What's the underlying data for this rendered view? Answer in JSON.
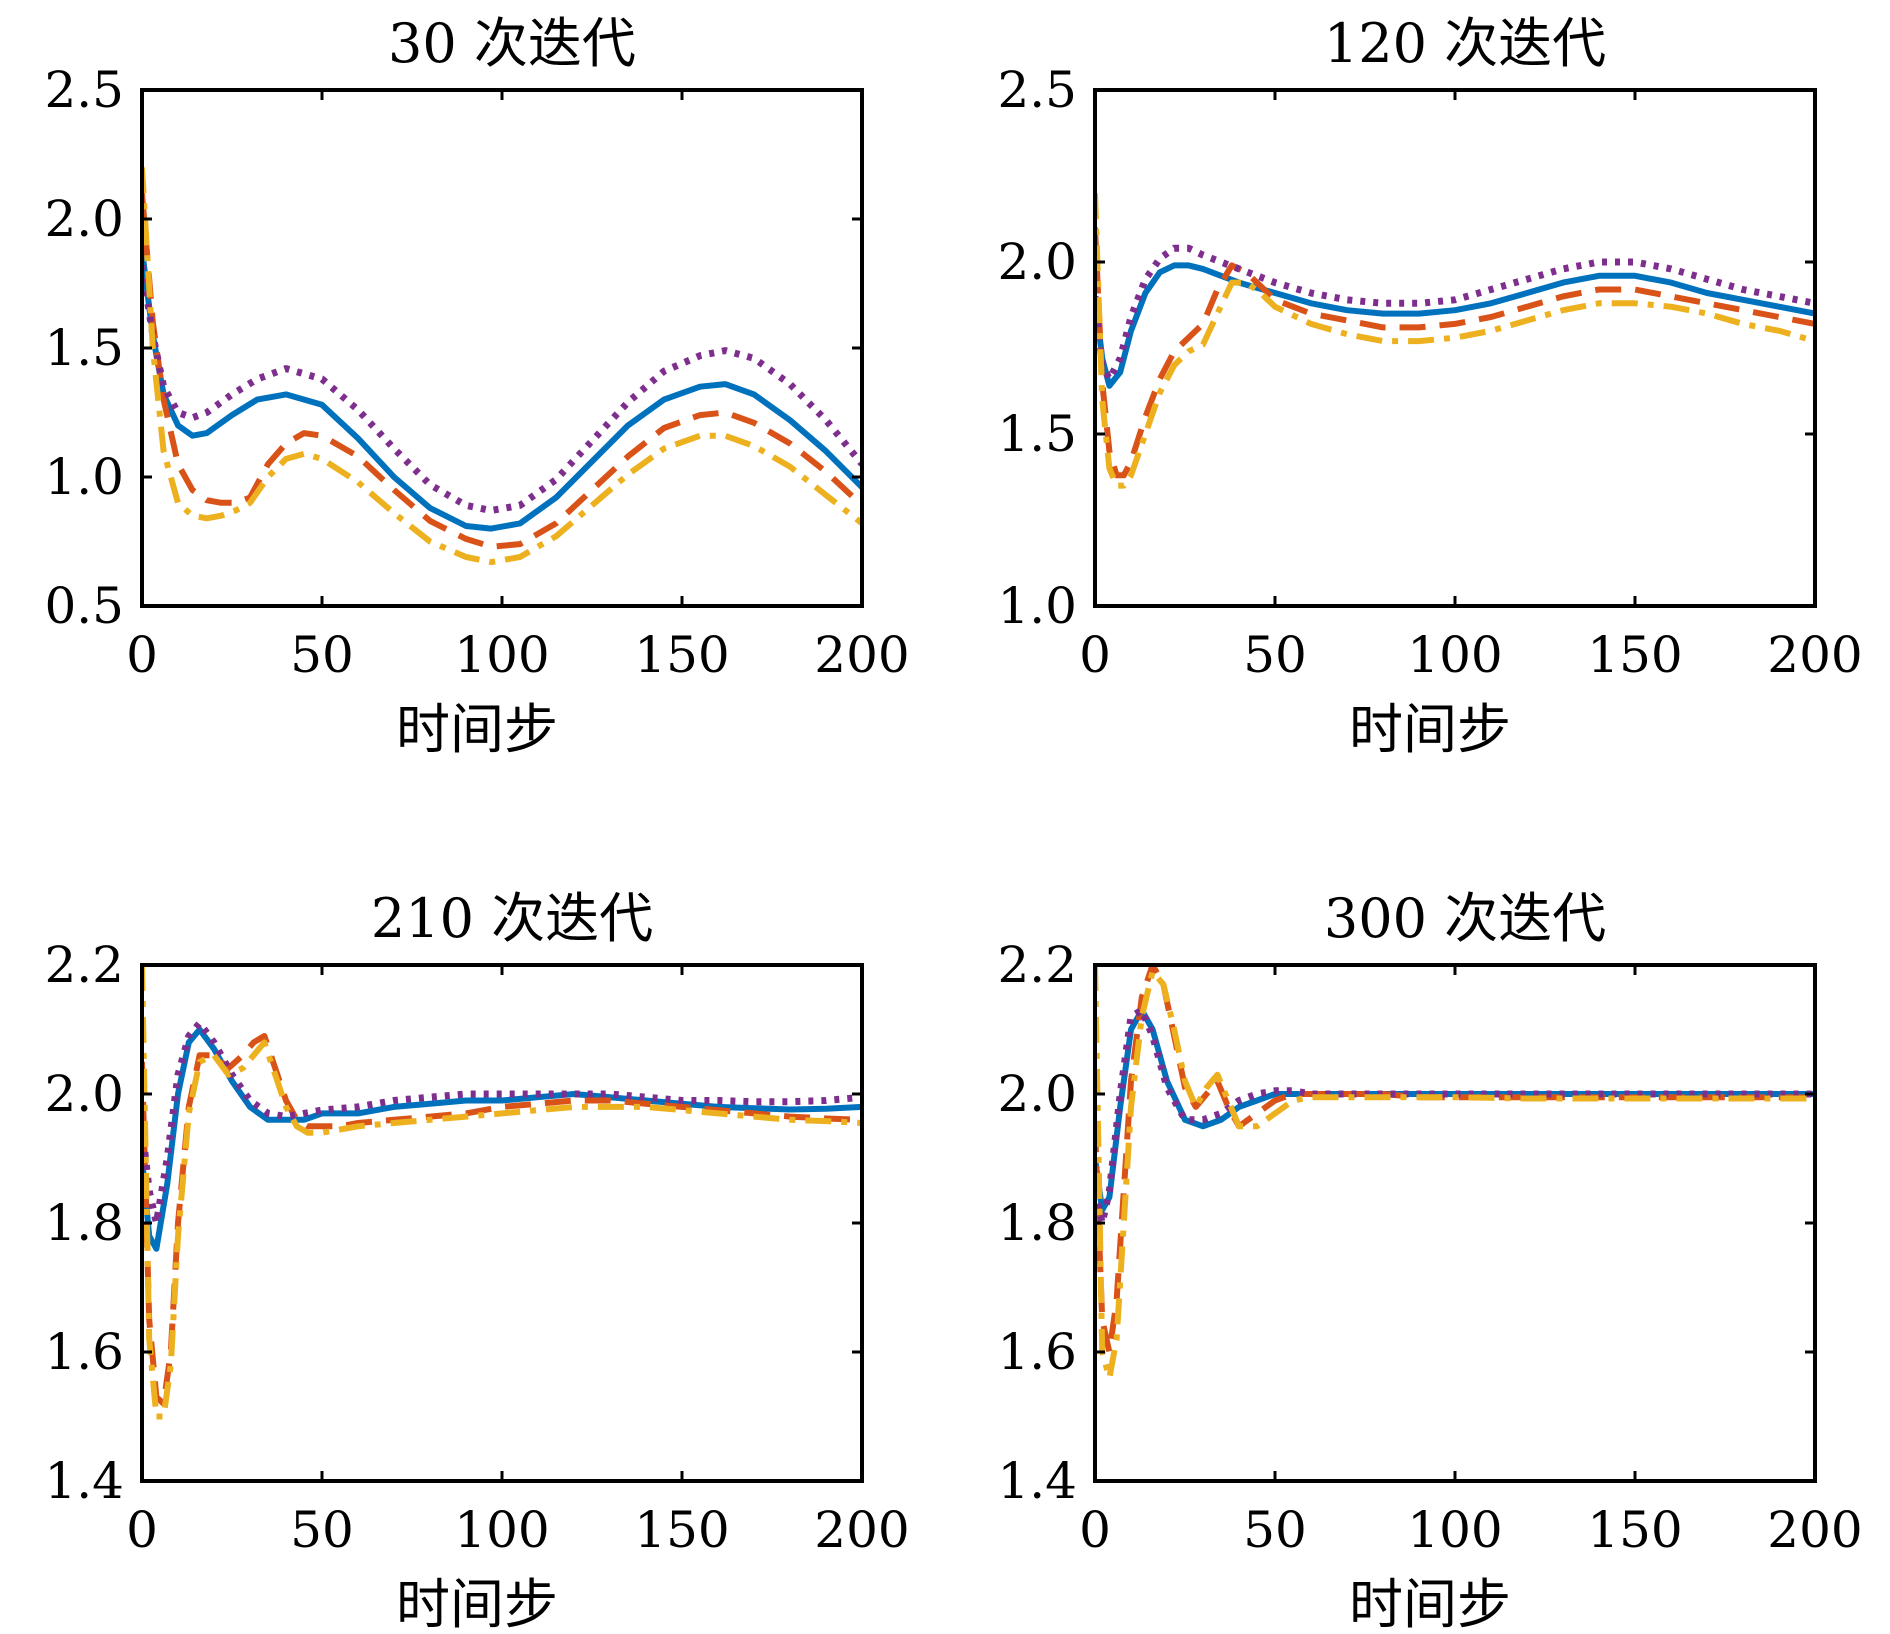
{
  "chart_data": [
    {
      "type": "line",
      "title": "30 次迭代",
      "xlabel": "时间步",
      "ylabel": "",
      "xlim": [
        0,
        200
      ],
      "ylim": [
        0.5,
        2.5
      ],
      "xticks": [
        "0",
        "50",
        "100",
        "150",
        "200"
      ],
      "yticks": [
        "0.5",
        "1.0",
        "1.5",
        "2.0",
        "2.5"
      ],
      "grid": false,
      "series": [
        {
          "color": "#0072BD",
          "style": "solid",
          "x": [
            0,
            3,
            6,
            10,
            14,
            18,
            25,
            32,
            40,
            50,
            60,
            70,
            80,
            90,
            97,
            105,
            115,
            125,
            135,
            145,
            155,
            162,
            170,
            180,
            190,
            200
          ],
          "y": [
            1.88,
            1.55,
            1.32,
            1.2,
            1.16,
            1.17,
            1.24,
            1.3,
            1.32,
            1.28,
            1.15,
            1.0,
            0.88,
            0.81,
            0.8,
            0.82,
            0.92,
            1.06,
            1.2,
            1.3,
            1.35,
            1.36,
            1.32,
            1.22,
            1.1,
            0.96
          ]
        },
        {
          "color": "#D95319",
          "style": "dashed",
          "x": [
            0,
            3,
            6,
            10,
            14,
            18,
            22,
            26,
            30,
            35,
            40,
            45,
            50,
            60,
            70,
            80,
            90,
            97,
            105,
            115,
            125,
            135,
            145,
            155,
            162,
            170,
            180,
            190,
            200
          ],
          "y": [
            2.1,
            1.6,
            1.3,
            1.05,
            0.95,
            0.91,
            0.9,
            0.9,
            0.92,
            1.05,
            1.13,
            1.17,
            1.16,
            1.08,
            0.95,
            0.83,
            0.76,
            0.73,
            0.74,
            0.82,
            0.95,
            1.08,
            1.19,
            1.24,
            1.25,
            1.21,
            1.13,
            1.02,
            0.89
          ]
        },
        {
          "color": "#7E2F8E",
          "style": "dotted",
          "x": [
            0,
            3,
            6,
            10,
            14,
            18,
            25,
            32,
            40,
            50,
            60,
            70,
            80,
            90,
            97,
            105,
            115,
            125,
            135,
            145,
            155,
            162,
            170,
            180,
            190,
            200
          ],
          "y": [
            1.82,
            1.55,
            1.35,
            1.25,
            1.23,
            1.25,
            1.32,
            1.38,
            1.42,
            1.38,
            1.26,
            1.11,
            0.97,
            0.89,
            0.87,
            0.89,
            0.99,
            1.14,
            1.29,
            1.41,
            1.47,
            1.49,
            1.46,
            1.36,
            1.22,
            1.05
          ]
        },
        {
          "color": "#EDB120",
          "style": "dashdot",
          "x": [
            0,
            3,
            6,
            10,
            14,
            18,
            22,
            26,
            30,
            35,
            40,
            45,
            50,
            60,
            70,
            80,
            90,
            97,
            105,
            115,
            125,
            135,
            145,
            155,
            162,
            170,
            180,
            190,
            200
          ],
          "y": [
            2.2,
            1.5,
            1.1,
            0.9,
            0.85,
            0.84,
            0.85,
            0.87,
            0.9,
            1.0,
            1.07,
            1.09,
            1.07,
            0.98,
            0.86,
            0.75,
            0.69,
            0.67,
            0.69,
            0.77,
            0.89,
            1.01,
            1.11,
            1.16,
            1.16,
            1.12,
            1.04,
            0.93,
            0.82
          ]
        }
      ]
    },
    {
      "type": "line",
      "title": "120 次迭代",
      "xlabel": "时间步",
      "ylabel": "",
      "xlim": [
        0,
        200
      ],
      "ylim": [
        1.0,
        2.5
      ],
      "xticks": [
        "0",
        "50",
        "100",
        "150",
        "200"
      ],
      "yticks": [
        "1.0",
        "1.5",
        "2.0",
        "2.5"
      ],
      "grid": false,
      "series": [
        {
          "color": "#0072BD",
          "style": "solid",
          "x": [
            0,
            2,
            4,
            7,
            10,
            14,
            18,
            22,
            26,
            30,
            35,
            40,
            50,
            60,
            70,
            80,
            90,
            100,
            110,
            120,
            130,
            140,
            150,
            160,
            170,
            180,
            190,
            200
          ],
          "y": [
            1.9,
            1.72,
            1.64,
            1.68,
            1.8,
            1.91,
            1.97,
            1.99,
            1.99,
            1.98,
            1.96,
            1.94,
            1.91,
            1.88,
            1.86,
            1.85,
            1.85,
            1.86,
            1.88,
            1.91,
            1.94,
            1.96,
            1.96,
            1.94,
            1.91,
            1.89,
            1.87,
            1.85
          ]
        },
        {
          "color": "#D95319",
          "style": "dashed",
          "x": [
            0,
            2,
            4,
            6,
            8,
            10,
            14,
            18,
            22,
            26,
            30,
            34,
            38,
            42,
            46,
            50,
            60,
            70,
            80,
            90,
            100,
            110,
            120,
            130,
            140,
            150,
            160,
            170,
            180,
            190,
            200
          ],
          "y": [
            2.1,
            1.65,
            1.45,
            1.38,
            1.38,
            1.42,
            1.55,
            1.66,
            1.74,
            1.78,
            1.82,
            1.92,
            1.99,
            1.97,
            1.93,
            1.89,
            1.85,
            1.83,
            1.81,
            1.81,
            1.82,
            1.84,
            1.87,
            1.9,
            1.92,
            1.92,
            1.9,
            1.88,
            1.86,
            1.84,
            1.82
          ]
        },
        {
          "color": "#7E2F8E",
          "style": "dotted",
          "x": [
            0,
            2,
            4,
            7,
            10,
            14,
            18,
            22,
            26,
            30,
            35,
            40,
            50,
            60,
            70,
            80,
            90,
            100,
            110,
            120,
            130,
            140,
            150,
            160,
            170,
            180,
            190,
            200
          ],
          "y": [
            1.9,
            1.7,
            1.66,
            1.72,
            1.84,
            1.95,
            2.01,
            2.04,
            2.04,
            2.02,
            2.0,
            1.98,
            1.94,
            1.91,
            1.89,
            1.88,
            1.88,
            1.89,
            1.92,
            1.95,
            1.98,
            2.0,
            2.0,
            1.98,
            1.95,
            1.92,
            1.9,
            1.88
          ]
        },
        {
          "color": "#EDB120",
          "style": "dashdot",
          "x": [
            0,
            2,
            4,
            6,
            8,
            10,
            14,
            18,
            22,
            26,
            30,
            34,
            38,
            42,
            46,
            50,
            60,
            70,
            80,
            90,
            100,
            110,
            120,
            130,
            140,
            150,
            160,
            170,
            180,
            190,
            200
          ],
          "y": [
            2.2,
            1.6,
            1.4,
            1.35,
            1.35,
            1.38,
            1.5,
            1.62,
            1.7,
            1.74,
            1.76,
            1.85,
            1.94,
            1.94,
            1.91,
            1.87,
            1.82,
            1.79,
            1.77,
            1.77,
            1.78,
            1.8,
            1.83,
            1.86,
            1.88,
            1.88,
            1.87,
            1.85,
            1.82,
            1.8,
            1.77
          ]
        }
      ]
    },
    {
      "type": "line",
      "title": "210 次迭代",
      "xlabel": "时间步",
      "ylabel": "",
      "xlim": [
        0,
        200
      ],
      "ylim": [
        1.4,
        2.2
      ],
      "xticks": [
        "0",
        "50",
        "100",
        "150",
        "200"
      ],
      "yticks": [
        "1.4",
        "1.6",
        "1.8",
        "2.0",
        "2.2"
      ],
      "grid": false,
      "series": [
        {
          "color": "#0072BD",
          "style": "solid",
          "x": [
            0,
            2,
            4,
            7,
            10,
            13,
            16,
            20,
            25,
            30,
            35,
            40,
            45,
            50,
            60,
            70,
            80,
            90,
            100,
            110,
            120,
            130,
            140,
            150,
            160,
            170,
            180,
            190,
            200
          ],
          "y": [
            1.9,
            1.78,
            1.76,
            1.86,
            2.0,
            2.08,
            2.1,
            2.07,
            2.02,
            1.98,
            1.96,
            1.96,
            1.96,
            1.97,
            1.97,
            1.98,
            1.985,
            1.99,
            1.99,
            1.995,
            2.0,
            1.995,
            1.99,
            1.985,
            1.98,
            1.978,
            1.976,
            1.977,
            1.98
          ]
        },
        {
          "color": "#D95319",
          "style": "dashed",
          "x": [
            0,
            2,
            4,
            6,
            8,
            10,
            13,
            16,
            20,
            24,
            28,
            31,
            34,
            37,
            40,
            43,
            46,
            50,
            55,
            60,
            70,
            80,
            90,
            100,
            110,
            120,
            130,
            140,
            150,
            160,
            170,
            180,
            190,
            200
          ],
          "y": [
            2.05,
            1.65,
            1.53,
            1.52,
            1.6,
            1.8,
            1.98,
            2.06,
            2.06,
            2.04,
            2.06,
            2.08,
            2.09,
            2.04,
            1.99,
            1.96,
            1.95,
            1.95,
            1.95,
            1.955,
            1.96,
            1.965,
            1.97,
            1.98,
            1.985,
            1.99,
            1.99,
            1.985,
            1.98,
            1.975,
            1.97,
            1.965,
            1.962,
            1.96
          ]
        },
        {
          "color": "#7E2F8E",
          "style": "dotted",
          "x": [
            0,
            2,
            4,
            7,
            10,
            13,
            16,
            20,
            25,
            30,
            35,
            40,
            45,
            50,
            60,
            70,
            80,
            90,
            100,
            110,
            120,
            130,
            140,
            150,
            160,
            170,
            180,
            190,
            200
          ],
          "y": [
            1.95,
            1.85,
            1.8,
            1.9,
            2.03,
            2.09,
            2.11,
            2.08,
            2.03,
            1.99,
            1.97,
            1.965,
            1.97,
            1.975,
            1.98,
            1.99,
            1.995,
            2.0,
            2.0,
            2.0,
            2.0,
            2.0,
            1.995,
            1.99,
            1.99,
            1.988,
            1.988,
            1.99,
            1.995
          ]
        },
        {
          "color": "#EDB120",
          "style": "dashdot",
          "x": [
            0,
            2,
            4,
            6,
            8,
            10,
            13,
            16,
            20,
            24,
            28,
            31,
            34,
            37,
            40,
            43,
            46,
            50,
            55,
            60,
            70,
            80,
            90,
            100,
            110,
            120,
            130,
            140,
            150,
            160,
            170,
            180,
            190,
            200
          ],
          "y": [
            2.2,
            1.62,
            1.5,
            1.5,
            1.58,
            1.78,
            1.97,
            2.05,
            2.06,
            2.03,
            2.04,
            2.06,
            2.08,
            2.03,
            1.98,
            1.95,
            1.94,
            1.94,
            1.945,
            1.95,
            1.955,
            1.96,
            1.965,
            1.97,
            1.975,
            1.98,
            1.98,
            1.98,
            1.975,
            1.97,
            1.965,
            1.96,
            1.958,
            1.955
          ]
        }
      ]
    },
    {
      "type": "line",
      "title": "300 次迭代",
      "xlabel": "时间步",
      "ylabel": "",
      "xlim": [
        0,
        200
      ],
      "ylim": [
        1.4,
        2.2
      ],
      "xticks": [
        "0",
        "50",
        "100",
        "150",
        "200"
      ],
      "yticks": [
        "1.4",
        "1.6",
        "1.8",
        "2.0",
        "2.2"
      ],
      "grid": false,
      "series": [
        {
          "color": "#0072BD",
          "style": "solid",
          "x": [
            0,
            2,
            4,
            7,
            10,
            13,
            16,
            20,
            25,
            30,
            35,
            40,
            45,
            50,
            55,
            60,
            70,
            80,
            90,
            100,
            120,
            140,
            160,
            180,
            200
          ],
          "y": [
            1.9,
            1.82,
            1.84,
            1.98,
            2.1,
            2.13,
            2.1,
            2.02,
            1.96,
            1.95,
            1.96,
            1.98,
            1.99,
            2.0,
            2.0,
            2.0,
            2.0,
            2.0,
            2.0,
            2.0,
            2.0,
            2.0,
            2.0,
            2.0,
            2.0
          ]
        },
        {
          "color": "#D95319",
          "style": "dashed",
          "x": [
            0,
            2,
            4,
            6,
            8,
            10,
            13,
            16,
            19,
            22,
            25,
            28,
            31,
            34,
            37,
            40,
            45,
            50,
            55,
            60,
            70,
            80,
            90,
            100,
            120,
            140,
            160,
            180,
            200
          ],
          "y": [
            1.95,
            1.65,
            1.6,
            1.68,
            1.85,
            2.02,
            2.15,
            2.2,
            2.17,
            2.09,
            2.01,
            1.98,
            2.0,
            2.02,
            1.98,
            1.95,
            1.97,
            1.99,
            2.0,
            2.0,
            2.0,
            2.0,
            1.995,
            1.995,
            1.995,
            1.995,
            1.995,
            1.995,
            1.995
          ]
        },
        {
          "color": "#7E2F8E",
          "style": "dotted",
          "x": [
            0,
            2,
            4,
            7,
            10,
            13,
            16,
            20,
            25,
            30,
            35,
            40,
            45,
            50,
            55,
            60,
            70,
            80,
            90,
            100,
            120,
            140,
            160,
            180,
            200
          ],
          "y": [
            1.85,
            1.8,
            1.85,
            2.0,
            2.12,
            2.13,
            2.09,
            2.01,
            1.96,
            1.96,
            1.97,
            1.99,
            2.0,
            2.005,
            2.005,
            2.0,
            2.0,
            2.0,
            2.0,
            2.0,
            2.0,
            2.0,
            2.0,
            2.0,
            2.0
          ]
        },
        {
          "color": "#EDB120",
          "style": "dashdot",
          "x": [
            0,
            2,
            4,
            6,
            8,
            10,
            13,
            16,
            19,
            22,
            25,
            28,
            31,
            34,
            37,
            40,
            45,
            50,
            55,
            60,
            70,
            80,
            90,
            100,
            120,
            140,
            160,
            180,
            200
          ],
          "y": [
            2.2,
            1.6,
            1.56,
            1.62,
            1.8,
            1.98,
            2.12,
            2.19,
            2.17,
            2.1,
            2.02,
            1.98,
            2.01,
            2.03,
            1.99,
            1.95,
            1.95,
            1.97,
            1.99,
            1.995,
            1.995,
            1.995,
            1.995,
            1.995,
            1.993,
            1.993,
            1.993,
            1.993,
            1.993
          ]
        }
      ]
    }
  ]
}
